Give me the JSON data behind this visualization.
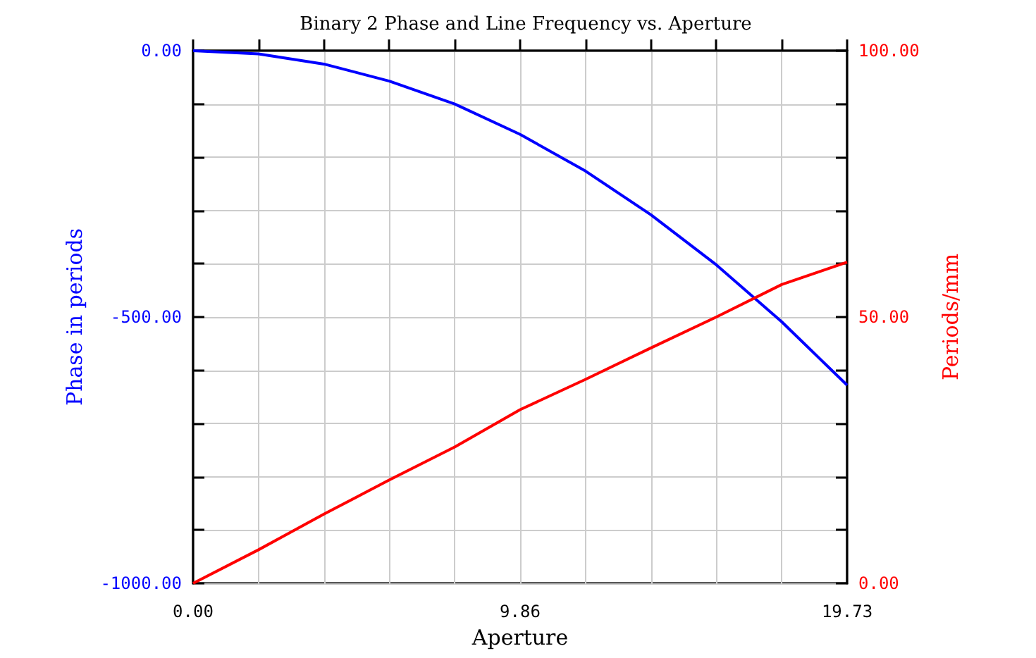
{
  "chart_data": {
    "type": "line",
    "title": "Binary 2 Phase and Line Frequency vs. Aperture",
    "xlabel": "Aperture",
    "ylabel": "Phase in periods",
    "y2label": "Periods/mm",
    "series": [
      {
        "color": "#0000ff",
        "x": [
          0,
          1.973,
          3.946,
          5.919,
          7.892,
          9.865,
          11.838,
          13.811,
          15.784,
          17.757,
          19.73
        ],
        "values": [
          0,
          -6,
          -25,
          -57,
          -100,
          -157,
          -226,
          -308,
          -402,
          -509,
          -628
        ]
      },
      {
        "color": "#ff0000",
        "axis": "y2",
        "x": [
          0,
          1.973,
          3.946,
          5.919,
          7.892,
          9.865,
          11.838,
          13.811,
          15.784,
          17.757,
          19.73
        ],
        "values": [
          0,
          6.3,
          13.0,
          19.4,
          25.6,
          32.6,
          38.3,
          44.2,
          50.0,
          56.1,
          60.3
        ]
      }
    ],
    "xlim": [
      0,
      19.73
    ],
    "xticks": [
      {
        "value": 0,
        "label": "0.00"
      },
      {
        "value": 1.973,
        "label": null
      },
      {
        "value": 3.946,
        "label": null
      },
      {
        "value": 5.919,
        "label": null
      },
      {
        "value": 7.892,
        "label": null
      },
      {
        "value": 9.865,
        "label": "9.86"
      },
      {
        "value": 11.838,
        "label": null
      },
      {
        "value": 13.811,
        "label": null
      },
      {
        "value": 15.784,
        "label": null
      },
      {
        "value": 17.757,
        "label": null
      },
      {
        "value": 19.73,
        "label": "19.73"
      }
    ],
    "ylim": [
      -1000,
      0
    ],
    "yticks": [
      {
        "value": -1000,
        "label": "-1000.00"
      },
      {
        "value": -900,
        "label": null
      },
      {
        "value": -800,
        "label": null
      },
      {
        "value": -700,
        "label": null
      },
      {
        "value": -600,
        "label": null
      },
      {
        "value": -500,
        "label": "-500.00"
      },
      {
        "value": -400,
        "label": null
      },
      {
        "value": -300,
        "label": null
      },
      {
        "value": -200,
        "label": null
      },
      {
        "value": -100,
        "label": null
      },
      {
        "value": 0,
        "label": "0.00"
      }
    ],
    "y2lim": [
      0,
      100
    ],
    "y2ticks": [
      {
        "value": 0,
        "label": "0.00"
      },
      {
        "value": 10,
        "label": null
      },
      {
        "value": 20,
        "label": null
      },
      {
        "value": 30,
        "label": null
      },
      {
        "value": 40,
        "label": null
      },
      {
        "value": 50,
        "label": "50.00"
      },
      {
        "value": 60,
        "label": null
      },
      {
        "value": 70,
        "label": null
      },
      {
        "value": 80,
        "label": null
      },
      {
        "value": 90,
        "label": null
      },
      {
        "value": 100,
        "label": "100.00"
      }
    ],
    "grid": true,
    "marker": "none",
    "line_style": "solid"
  }
}
